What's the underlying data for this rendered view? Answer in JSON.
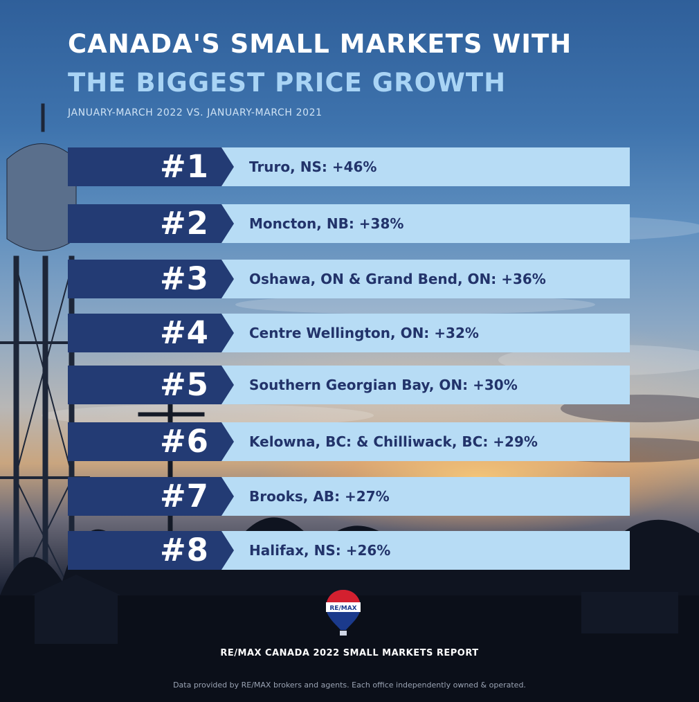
{
  "header": {
    "title_line1": "CANADA'S SMALL MARKETS WITH",
    "title_line2": "THE BIGGEST PRICE GROWTH",
    "subtitle": "JANUARY-MARCH 2022 VS. JANUARY-MARCH 2021"
  },
  "rankings": [
    {
      "rank": "#1",
      "label": "Truro, NS: +46%"
    },
    {
      "rank": "#2",
      "label": "Moncton, NB: +38%"
    },
    {
      "rank": "#3",
      "label": "Oshawa, ON & Grand Bend, ON: +36%"
    },
    {
      "rank": "#4",
      "label": "Centre Wellington, ON: +32%"
    },
    {
      "rank": "#5",
      "label": "Southern Georgian Bay, ON: +30%"
    },
    {
      "rank": "#6",
      "label": "Kelowna, BC: & Chilliwack, BC: +29%"
    },
    {
      "rank": "#7",
      "label": "Brooks, AB: +27%"
    },
    {
      "rank": "#8",
      "label": "Halifax, NS: +26%"
    }
  ],
  "logo": {
    "text": "RE/MAX",
    "icon": "hot-air-balloon-logo"
  },
  "footer": {
    "report_title": "RE/MAX CANADA 2022 SMALL MARKETS REPORT",
    "disclaimer": "Data provided by RE/MAX brokers and agents. Each office independently owned & operated."
  },
  "colors": {
    "badge": "#233b74",
    "bar": "#b7dcf5",
    "label_text": "#22336a",
    "title_accent": "#a9d4f5"
  }
}
